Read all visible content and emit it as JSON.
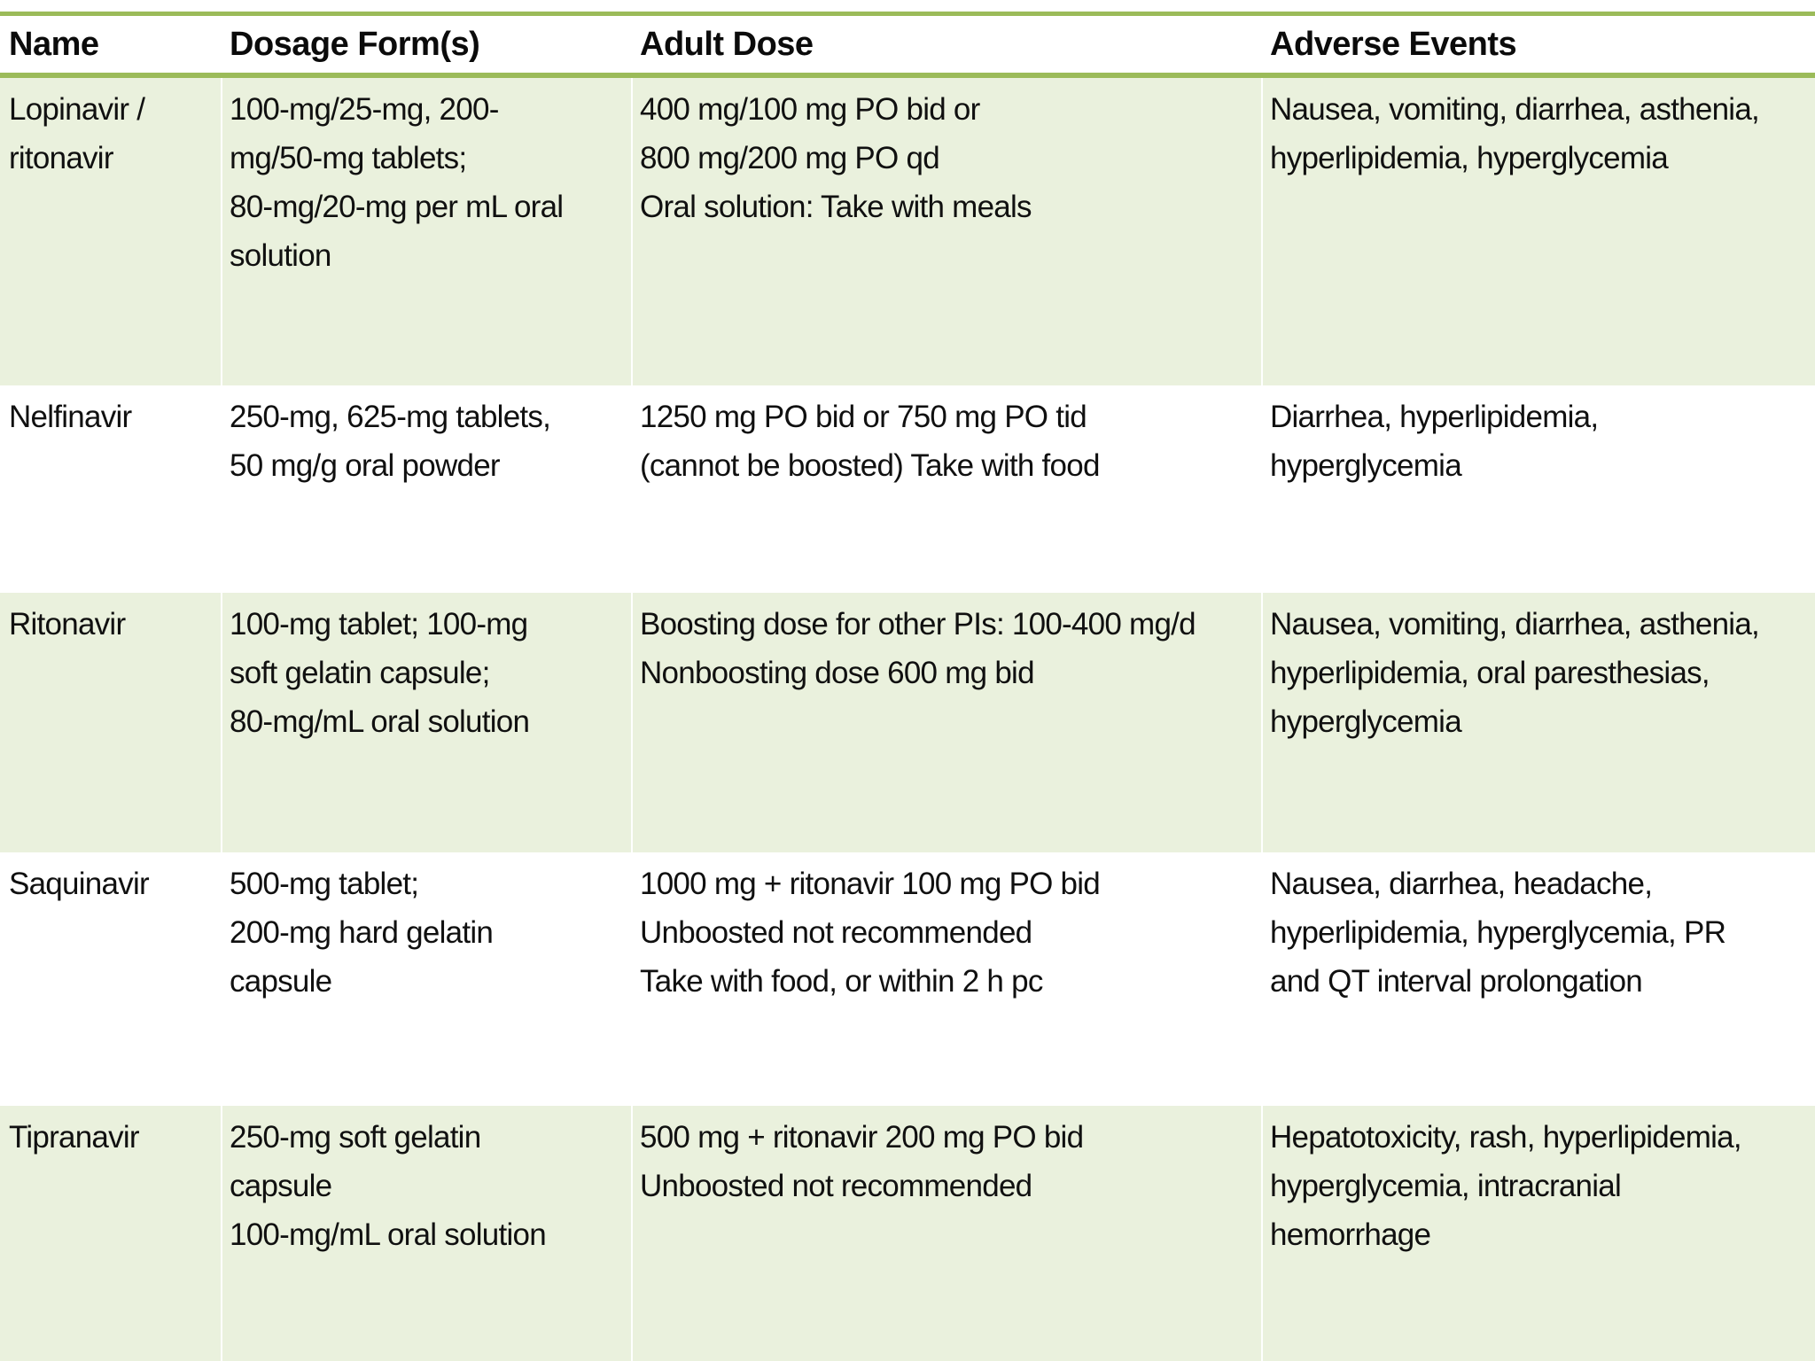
{
  "colors": {
    "accent_green": "#9bbb59",
    "band_green": "#eaf1dd",
    "row_white": "#ffffff",
    "text": "#111111"
  },
  "table": {
    "columns": [
      "Name",
      "Dosage Form(s)",
      "Adult Dose",
      "Adverse Events"
    ],
    "rows": [
      {
        "cells": [
          "Lopinavir /\nritonavir",
          "100-mg/25-mg, 200-\nmg/50-mg tablets;\n80-mg/20-mg per mL oral\nsolution",
          "400 mg/100 mg PO bid or\n800 mg/200 mg PO qd\nOral solution: Take with meals",
          "Nausea, vomiting, diarrhea, asthenia,\nhyperlipidemia, hyperglycemia"
        ]
      },
      {
        "cells": [
          "Nelfinavir",
          "250-mg, 625-mg tablets,\n50 mg/g oral powder",
          "1250 mg PO bid or 750 mg PO tid\n(cannot be boosted) Take with food",
          "Diarrhea, hyperlipidemia,\nhyperglycemia"
        ]
      },
      {
        "cells": [
          "Ritonavir",
          "100-mg tablet; 100-mg\nsoft gelatin capsule;\n80-mg/mL oral solution",
          "Boosting dose for other PIs: 100-400 mg/d\nNonboosting dose  600 mg bid",
          "Nausea, vomiting, diarrhea, asthenia,\nhyperlipidemia, oral paresthesias,\nhyperglycemia"
        ]
      },
      {
        "cells": [
          "Saquinavir",
          "500-mg tablet;\n200-mg hard gelatin\ncapsule",
          "1000 mg + ritonavir 100 mg PO bid\nUnboosted  not recommended\nTake with food, or within 2 h pc",
          "Nausea, diarrhea, headache,\nhyperlipidemia, hyperglycemia, PR\nand QT interval prolongation"
        ]
      },
      {
        "cells": [
          "Tipranavir",
          "250-mg soft gelatin\ncapsule\n100-mg/mL oral solution",
          "500 mg + ritonavir 200 mg PO bid\nUnboosted  not recommended",
          "Hepatotoxicity, rash, hyperlipidemia,\nhyperglycemia, intracranial\nhemorrhage"
        ]
      }
    ]
  }
}
